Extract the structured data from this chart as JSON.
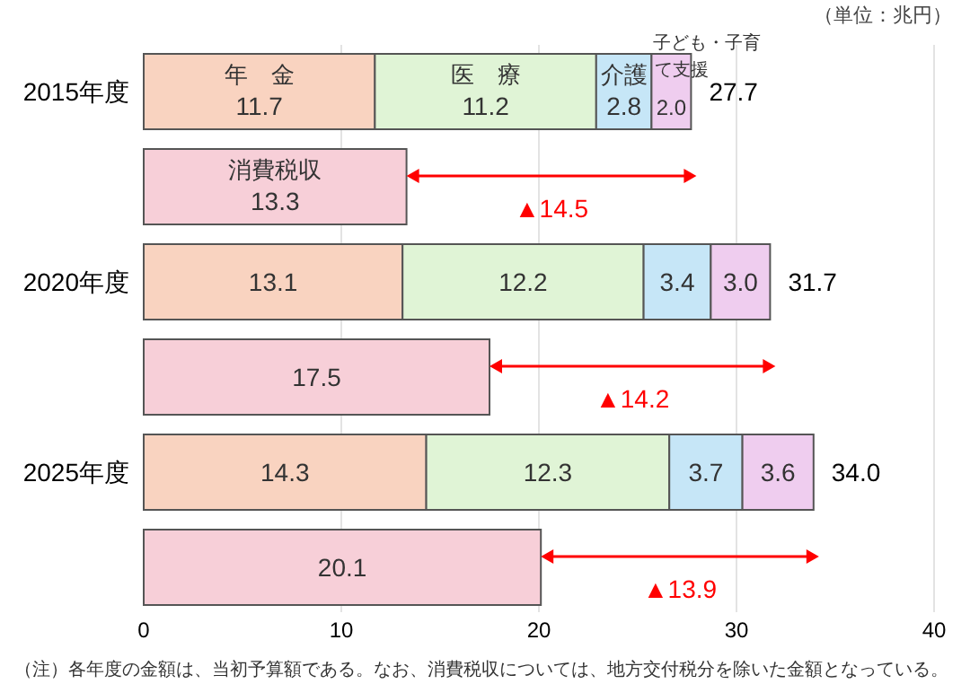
{
  "chart_data": {
    "type": "bar",
    "orientation": "horizontal",
    "stacked": true,
    "categories": [
      "2015年度",
      null,
      "2020年度",
      null,
      "2025年度",
      null
    ],
    "series": [
      {
        "name": "年　金",
        "color": "#f9d3c0",
        "values": [
          11.7,
          null,
          13.1,
          null,
          14.3,
          null
        ]
      },
      {
        "name": "医　療",
        "color": "#e0f4d6",
        "values": [
          11.2,
          null,
          12.2,
          null,
          12.3,
          null
        ]
      },
      {
        "name": "介護",
        "color": "#c6e6f7",
        "values": [
          2.8,
          null,
          3.4,
          null,
          3.7,
          null
        ]
      },
      {
        "name": "子ども・子育て支援",
        "color": "#efcdef",
        "values": [
          2.0,
          null,
          3.0,
          null,
          3.6,
          null
        ],
        "value_labels": [
          "2.0",
          null,
          "3.0",
          null,
          "3.6",
          null
        ]
      },
      {
        "name": "消費税収",
        "color": "#f7cfd8",
        "values": [
          null,
          13.3,
          null,
          17.5,
          null,
          20.1
        ]
      }
    ],
    "data_labels": true,
    "totals": [
      "27.7",
      null,
      "31.7",
      null,
      "34.0",
      null
    ],
    "xlim": [
      0,
      40
    ],
    "xticks": [
      0,
      10,
      20,
      30,
      40
    ],
    "grid": "x",
    "annotations": [
      "▲14.5",
      "▲14.2",
      "▲13.9",
      "（単位：兆円）",
      "（注）各年度の金額は、当初予算額である。なお、消費税収については、地方交付税分を除いた金額となっている。"
    ]
  }
}
